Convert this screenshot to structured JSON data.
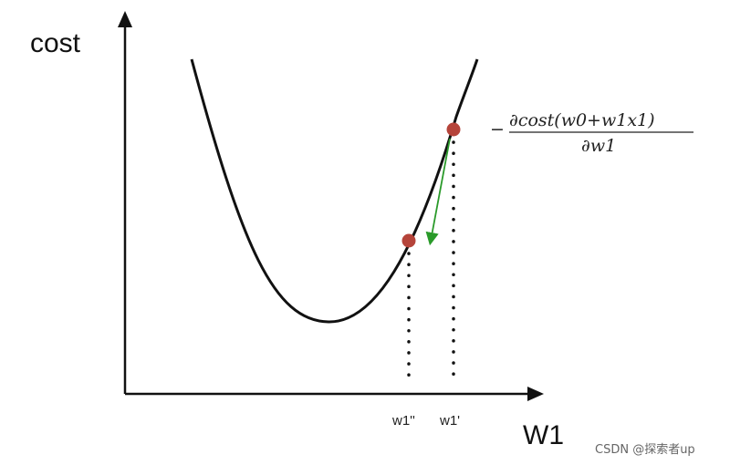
{
  "axes": {
    "y_label": "cost",
    "x_label": "W1"
  },
  "points": {
    "upper_label": "w1'",
    "lower_label": "w1''"
  },
  "formula": {
    "minus": "−",
    "numerator": "∂cost(w0+w1x1)",
    "denominator": "∂w1"
  },
  "colors": {
    "curve": "#111111",
    "point": "#b5443a",
    "arrow": "#2a9a2a"
  },
  "watermark": "CSDN @探索者up"
}
